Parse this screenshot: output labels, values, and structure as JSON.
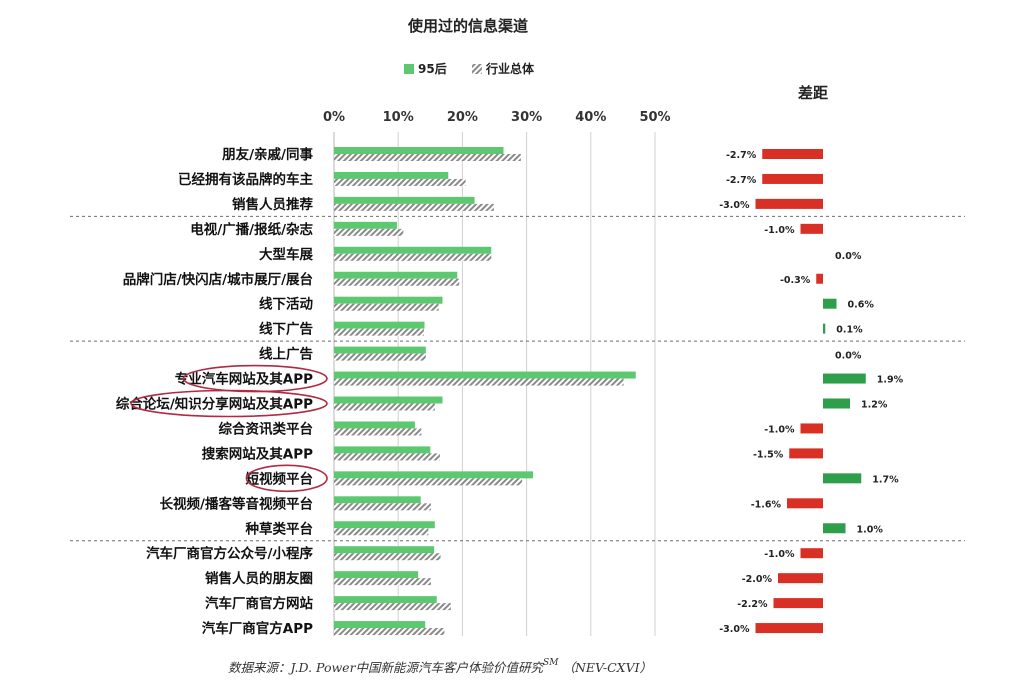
{
  "chart_data": [
    {
      "type": "bar",
      "orientation": "horizontal",
      "title": "使用过的信息渠道",
      "x_ticks": [
        "0%",
        "10%",
        "20%",
        "30%",
        "40%",
        "50%"
      ],
      "xlim": [
        0,
        50
      ],
      "grid": true,
      "legend_position": "top",
      "categories": [
        "朋友/亲戚/同事",
        "已经拥有该品牌的车主",
        "销售人员推荐",
        "电视/广播/报纸/杂志",
        "大型车展",
        "品牌门店/快闪店/城市展厅/展台",
        "线下活动",
        "线下广告",
        "线上广告",
        "专业汽车网站及其APP",
        "综合论坛/知识分享网站及其APP",
        "综合资讯类平台",
        "搜索网站及其APP",
        "短视频平台",
        "长视频/播客等音视频平台",
        "种草类平台",
        "汽车厂商官方公众号/小程序",
        "销售人员的朋友圈",
        "汽车厂商官方网站",
        "汽车厂商官方APP"
      ],
      "groups_after_index": [
        2,
        7,
        15
      ],
      "series": [
        {
          "name": "95后",
          "color": "#5cc971",
          "values": [
            26.4,
            17.8,
            21.9,
            9.8,
            24.5,
            19.2,
            16.9,
            14.1,
            14.3,
            47.0,
            16.9,
            12.6,
            15.0,
            31.0,
            13.5,
            15.7,
            15.6,
            13.1,
            16.0,
            14.2
          ]
        },
        {
          "name": "行业总体",
          "color": "#9b9b9b",
          "pattern": "hatched",
          "values": [
            29.1,
            20.5,
            24.9,
            10.8,
            24.5,
            19.5,
            16.3,
            14.0,
            14.3,
            45.1,
            15.7,
            13.6,
            16.5,
            29.3,
            15.1,
            14.7,
            16.6,
            15.1,
            18.2,
            17.2
          ]
        }
      ]
    },
    {
      "type": "bar",
      "orientation": "horizontal",
      "title": "差距",
      "categories_ref": "same as first chart",
      "values": [
        -2.7,
        -2.7,
        -3.0,
        -1.0,
        0.0,
        -0.3,
        0.6,
        0.1,
        0.0,
        1.9,
        1.2,
        -1.0,
        -1.5,
        1.7,
        -1.6,
        1.0,
        -1.0,
        -2.0,
        -2.2,
        -3.0
      ],
      "labels": [
        "-2.7%",
        "-2.7%",
        "-3.0%",
        "-1.0%",
        "0.0%",
        "-0.3%",
        "0.6%",
        "0.1%",
        "0.0%",
        "1.9%",
        "1.2%",
        "-1.0%",
        "-1.5%",
        "1.7%",
        "-1.6%",
        "1.0%",
        "-1.0%",
        "-2.0%",
        "-2.2%",
        "-3.0%"
      ],
      "positive_color": "#2e9e4a",
      "negative_color": "#d93025"
    }
  ],
  "highlighted_categories": [
    "专业汽车网站及其APP",
    "综合论坛/知识分享网站及其APP",
    "短视频平台"
  ],
  "highlight_color": "#b02a43",
  "source": {
    "text": "数据来源：J.D. Power中国新能源汽车客户体验价值研究",
    "superscript": "SM",
    "suffix": "（NEV-CXVI）"
  }
}
